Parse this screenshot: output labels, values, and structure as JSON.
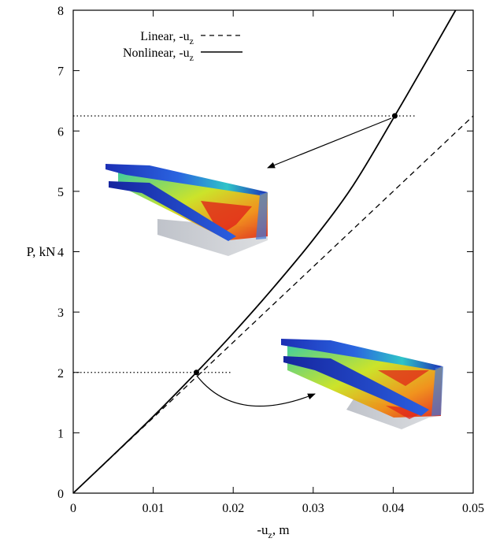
{
  "chart_data": {
    "type": "line",
    "xlabel": "-u_z, m",
    "ylabel": "P, kN",
    "xlim": [
      0,
      0.05
    ],
    "ylim": [
      0,
      8
    ],
    "x_ticks": [
      "0",
      "0.01",
      "0.02",
      "0.03",
      "0.04",
      "0.05"
    ],
    "y_ticks": [
      "0",
      "1",
      "2",
      "3",
      "4",
      "5",
      "6",
      "7",
      "8"
    ],
    "legend_position": "top-left",
    "series": [
      {
        "name": "Linear, -u_z",
        "style": "dashed",
        "color": "#000000",
        "x": [
          0,
          0.05
        ],
        "y": [
          0,
          6.25
        ]
      },
      {
        "name": "Nonlinear, -u_z",
        "style": "solid",
        "color": "#000000",
        "x": [
          0,
          0.005,
          0.01,
          0.0154,
          0.02,
          0.025,
          0.03,
          0.035,
          0.0402,
          0.045,
          0.0478
        ],
        "y": [
          0,
          0.63,
          1.27,
          2.0,
          2.65,
          3.4,
          4.2,
          5.1,
          6.25,
          7.35,
          8.0
        ]
      }
    ],
    "markers": [
      {
        "x": 0.0154,
        "y": 2.0
      },
      {
        "x": 0.0402,
        "y": 6.25
      }
    ],
    "reference_lines": [
      {
        "y": 2.0,
        "x_from": 0,
        "x_to": 0.0197,
        "style": "dotted"
      },
      {
        "y": 6.25,
        "x_from": 0,
        "x_to": 0.0427,
        "style": "dotted"
      }
    ],
    "legend": {
      "linear_label": "Linear, -u",
      "nonlinear_label": "Nonlinear, -u",
      "subscript": "z"
    },
    "xlabel_parts": {
      "pre": "-u",
      "sub": "z",
      "post": ", m"
    },
    "insets": [
      {
        "name": "deformed-beam-upper",
        "palette": [
          "#1b2fb8",
          "#2e7df0",
          "#2fd38a",
          "#d8e81c",
          "#f29a12",
          "#e0261a"
        ]
      },
      {
        "name": "deformed-beam-lower",
        "palette": [
          "#1b2fb8",
          "#2e7df0",
          "#2fd38a",
          "#d8e81c",
          "#f29a12",
          "#e0261a"
        ]
      }
    ]
  }
}
